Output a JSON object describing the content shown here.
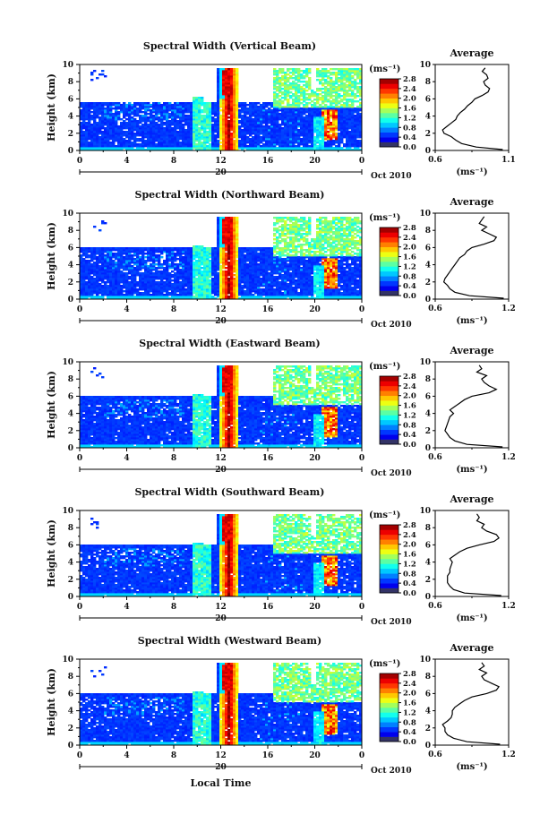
{
  "figure": {
    "x_label": "Local Time"
  },
  "chart_data": [
    {
      "type": "heatmap",
      "title": "Spectral Width (Vertical Beam)",
      "ylabel": "Height (km)",
      "xlim": [
        0,
        24
      ],
      "ylim": [
        0,
        10
      ],
      "x_ticks": [
        "0",
        "4",
        "8",
        "12",
        "16",
        "20",
        "0"
      ],
      "y_ticks": [
        "0",
        "2",
        "4",
        "6",
        "8",
        "10"
      ],
      "date_label": "20",
      "month_label": "Oct 2010",
      "colorbar": {
        "unit": "(ms⁻¹)",
        "range": [
          0.0,
          2.8
        ],
        "ticks": [
          "0.0",
          "0.4",
          "0.8",
          "1.2",
          "1.6",
          "2.0",
          "2.4",
          "2.8"
        ]
      },
      "average_profile": {
        "title": "Average",
        "xlabel": "(ms⁻¹)",
        "xlim": [
          0.6,
          1.1
        ],
        "x_ticks": [
          "0.6",
          "1.1"
        ],
        "ylim": [
          0,
          10
        ],
        "y_ticks": [
          "0",
          "2",
          "4",
          "6",
          "8",
          "10"
        ],
        "points": [
          [
            1.06,
            0.1
          ],
          [
            0.88,
            0.4
          ],
          [
            0.78,
            0.8
          ],
          [
            0.74,
            1.2
          ],
          [
            0.71,
            1.6
          ],
          [
            0.66,
            2.0
          ],
          [
            0.65,
            2.4
          ],
          [
            0.68,
            2.8
          ],
          [
            0.71,
            3.2
          ],
          [
            0.74,
            3.6
          ],
          [
            0.75,
            4.0
          ],
          [
            0.77,
            4.4
          ],
          [
            0.8,
            4.8
          ],
          [
            0.82,
            5.2
          ],
          [
            0.85,
            5.6
          ],
          [
            0.87,
            6.0
          ],
          [
            0.92,
            6.4
          ],
          [
            0.96,
            6.8
          ],
          [
            0.97,
            7.2
          ],
          [
            0.94,
            7.6
          ],
          [
            0.93,
            8.0
          ],
          [
            0.96,
            8.4
          ],
          [
            0.95,
            8.8
          ],
          [
            0.92,
            9.2
          ],
          [
            0.94,
            9.6
          ]
        ]
      }
    },
    {
      "type": "heatmap",
      "title": "Spectral Width (Northward Beam)",
      "ylabel": "Height (km)",
      "xlim": [
        0,
        24
      ],
      "ylim": [
        0,
        10
      ],
      "x_ticks": [
        "0",
        "4",
        "8",
        "12",
        "16",
        "20",
        "0"
      ],
      "y_ticks": [
        "0",
        "2",
        "4",
        "6",
        "8",
        "10"
      ],
      "date_label": "20",
      "month_label": "Oct 2010",
      "colorbar": {
        "unit": "(ms⁻¹)",
        "range": [
          0.0,
          2.8
        ],
        "ticks": [
          "0.0",
          "0.4",
          "0.8",
          "1.2",
          "1.6",
          "2.0",
          "2.4",
          "2.8"
        ]
      },
      "average_profile": {
        "title": "Average",
        "xlabel": "(ms⁻¹)",
        "xlim": [
          0.6,
          1.2
        ],
        "x_ticks": [
          "0.6",
          "1.2"
        ],
        "ylim": [
          0,
          10
        ],
        "y_ticks": [
          "0",
          "2",
          "4",
          "6",
          "8",
          "10"
        ],
        "points": [
          [
            1.16,
            0.1
          ],
          [
            0.88,
            0.4
          ],
          [
            0.76,
            0.8
          ],
          [
            0.72,
            1.2
          ],
          [
            0.7,
            1.6
          ],
          [
            0.67,
            2.0
          ],
          [
            0.68,
            2.4
          ],
          [
            0.7,
            2.8
          ],
          [
            0.72,
            3.2
          ],
          [
            0.74,
            3.6
          ],
          [
            0.76,
            4.0
          ],
          [
            0.78,
            4.4
          ],
          [
            0.8,
            4.8
          ],
          [
            0.84,
            5.2
          ],
          [
            0.86,
            5.6
          ],
          [
            0.9,
            6.0
          ],
          [
            1.0,
            6.4
          ],
          [
            1.08,
            6.8
          ],
          [
            1.1,
            7.2
          ],
          [
            1.04,
            7.6
          ],
          [
            0.98,
            8.0
          ],
          [
            1.02,
            8.4
          ],
          [
            0.96,
            8.8
          ],
          [
            0.98,
            9.2
          ],
          [
            1.0,
            9.6
          ]
        ]
      }
    },
    {
      "type": "heatmap",
      "title": "Spectral Width (Eastward Beam)",
      "ylabel": "Height (km)",
      "xlim": [
        0,
        24
      ],
      "ylim": [
        0,
        10
      ],
      "x_ticks": [
        "0",
        "4",
        "8",
        "12",
        "16",
        "20",
        "0"
      ],
      "y_ticks": [
        "0",
        "2",
        "4",
        "6",
        "8",
        "10"
      ],
      "date_label": "20",
      "month_label": "Oct 2010",
      "colorbar": {
        "unit": "(ms⁻¹)",
        "range": [
          0.0,
          2.8
        ],
        "ticks": [
          "0.0",
          "0.4",
          "0.8",
          "1.2",
          "1.6",
          "2.0",
          "2.4",
          "2.8"
        ]
      },
      "average_profile": {
        "title": "Average",
        "xlabel": "(ms⁻¹)",
        "xlim": [
          0.6,
          1.2
        ],
        "x_ticks": [
          "0.6",
          "1.2"
        ],
        "ylim": [
          0,
          10
        ],
        "y_ticks": [
          "0",
          "2",
          "4",
          "6",
          "8",
          "10"
        ],
        "points": [
          [
            1.15,
            0.1
          ],
          [
            0.86,
            0.4
          ],
          [
            0.76,
            0.8
          ],
          [
            0.72,
            1.2
          ],
          [
            0.7,
            1.6
          ],
          [
            0.68,
            2.0
          ],
          [
            0.69,
            2.4
          ],
          [
            0.7,
            2.8
          ],
          [
            0.71,
            3.2
          ],
          [
            0.72,
            3.6
          ],
          [
            0.75,
            4.0
          ],
          [
            0.72,
            4.4
          ],
          [
            0.76,
            4.8
          ],
          [
            0.8,
            5.2
          ],
          [
            0.84,
            5.6
          ],
          [
            0.9,
            6.0
          ],
          [
            1.04,
            6.4
          ],
          [
            1.1,
            6.8
          ],
          [
            1.04,
            7.2
          ],
          [
            1.0,
            7.6
          ],
          [
            0.98,
            8.0
          ],
          [
            1.02,
            8.4
          ],
          [
            0.94,
            8.8
          ],
          [
            0.98,
            9.2
          ],
          [
            0.96,
            9.6
          ]
        ]
      }
    },
    {
      "type": "heatmap",
      "title": "Spectral Width (Southward Beam)",
      "ylabel": "Height (km)",
      "xlim": [
        0,
        24
      ],
      "ylim": [
        0,
        10
      ],
      "x_ticks": [
        "0",
        "4",
        "8",
        "12",
        "16",
        "20",
        "0"
      ],
      "y_ticks": [
        "0",
        "2",
        "4",
        "6",
        "8",
        "10"
      ],
      "date_label": "20",
      "month_label": "Oct 2010",
      "colorbar": {
        "unit": "(ms⁻¹)",
        "range": [
          0.0,
          2.8
        ],
        "ticks": [
          "0.0",
          "0.4",
          "0.8",
          "1.2",
          "1.6",
          "2.0",
          "2.4",
          "2.8"
        ]
      },
      "average_profile": {
        "title": "Average",
        "xlabel": "(ms⁻¹)",
        "xlim": [
          0.6,
          1.2
        ],
        "x_ticks": [
          "0.6",
          "1.2"
        ],
        "ylim": [
          0,
          10
        ],
        "y_ticks": [
          "0",
          "2",
          "4",
          "6",
          "8",
          "10"
        ],
        "points": [
          [
            1.14,
            0.1
          ],
          [
            0.84,
            0.4
          ],
          [
            0.75,
            0.8
          ],
          [
            0.72,
            1.2
          ],
          [
            0.7,
            1.6
          ],
          [
            0.7,
            2.0
          ],
          [
            0.7,
            2.4
          ],
          [
            0.72,
            2.8
          ],
          [
            0.72,
            3.2
          ],
          [
            0.73,
            3.6
          ],
          [
            0.74,
            4.0
          ],
          [
            0.72,
            4.4
          ],
          [
            0.76,
            4.8
          ],
          [
            0.8,
            5.2
          ],
          [
            0.86,
            5.6
          ],
          [
            0.96,
            6.0
          ],
          [
            1.08,
            6.4
          ],
          [
            1.12,
            6.8
          ],
          [
            1.1,
            7.2
          ],
          [
            1.02,
            7.6
          ],
          [
            0.98,
            8.0
          ],
          [
            1.0,
            8.4
          ],
          [
            0.94,
            8.8
          ],
          [
            0.96,
            9.2
          ],
          [
            0.94,
            9.6
          ]
        ]
      }
    },
    {
      "type": "heatmap",
      "title": "Spectral Width (Westward Beam)",
      "ylabel": "Height (km)",
      "xlim": [
        0,
        24
      ],
      "ylim": [
        0,
        10
      ],
      "x_ticks": [
        "0",
        "4",
        "8",
        "12",
        "16",
        "20",
        "0"
      ],
      "y_ticks": [
        "0",
        "2",
        "4",
        "6",
        "8",
        "10"
      ],
      "date_label": "20",
      "month_label": "Oct 2010",
      "colorbar": {
        "unit": "(ms⁻¹)",
        "range": [
          0.0,
          2.8
        ],
        "ticks": [
          "0.0",
          "0.4",
          "0.8",
          "1.2",
          "1.6",
          "2.0",
          "2.4",
          "2.8"
        ]
      },
      "average_profile": {
        "title": "Average",
        "xlabel": "(ms⁻¹)",
        "xlim": [
          0.6,
          1.2
        ],
        "x_ticks": [
          "0.6",
          "1.2"
        ],
        "ylim": [
          0,
          10
        ],
        "y_ticks": [
          "0",
          "2",
          "4",
          "6",
          "8",
          "10"
        ],
        "points": [
          [
            1.13,
            0.1
          ],
          [
            0.86,
            0.4
          ],
          [
            0.75,
            0.8
          ],
          [
            0.7,
            1.2
          ],
          [
            0.68,
            1.6
          ],
          [
            0.68,
            2.0
          ],
          [
            0.66,
            2.4
          ],
          [
            0.7,
            2.8
          ],
          [
            0.73,
            3.2
          ],
          [
            0.74,
            3.6
          ],
          [
            0.74,
            4.0
          ],
          [
            0.76,
            4.4
          ],
          [
            0.8,
            4.8
          ],
          [
            0.84,
            5.2
          ],
          [
            0.9,
            5.6
          ],
          [
            1.02,
            6.0
          ],
          [
            1.1,
            6.4
          ],
          [
            1.12,
            6.8
          ],
          [
            1.06,
            7.2
          ],
          [
            1.0,
            7.6
          ],
          [
            0.98,
            8.0
          ],
          [
            1.02,
            8.4
          ],
          [
            0.96,
            8.8
          ],
          [
            1.0,
            9.2
          ],
          [
            0.98,
            9.6
          ]
        ]
      }
    }
  ]
}
